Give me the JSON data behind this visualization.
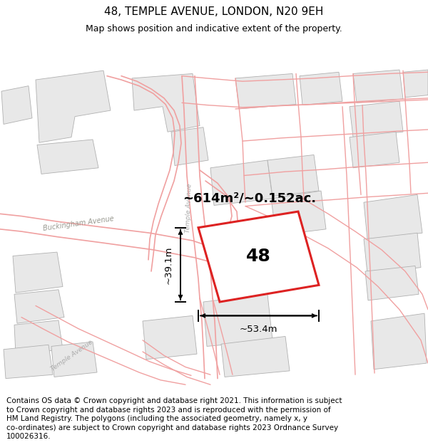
{
  "title": "48, TEMPLE AVENUE, LONDON, N20 9EH",
  "subtitle": "Map shows position and indicative extent of the property.",
  "area_label": "~614m²/~0.152ac.",
  "property_number": "48",
  "dim_width": "~53.4m",
  "dim_height": "~39.1m",
  "map_bg": "#ffffff",
  "building_fill": "#e8e8e8",
  "building_edge": "#b0b0b0",
  "road_fill": "#f0f0f0",
  "pink_line": "#f0a0a0",
  "red_line": "#dd2222",
  "prop_fill": "#ffffff",
  "title_fontsize": 11,
  "subtitle_fontsize": 9,
  "footer_fontsize": 7.5,
  "footer_lines": [
    "Contains OS data © Crown copyright and database right 2021. This information is subject",
    "to Crown copyright and database rights 2023 and is reproduced with the permission of",
    "HM Land Registry. The polygons (including the associated geometry, namely x, y",
    "co-ordinates) are subject to Crown copyright and database rights 2023 Ordnance Survey",
    "100026316."
  ]
}
